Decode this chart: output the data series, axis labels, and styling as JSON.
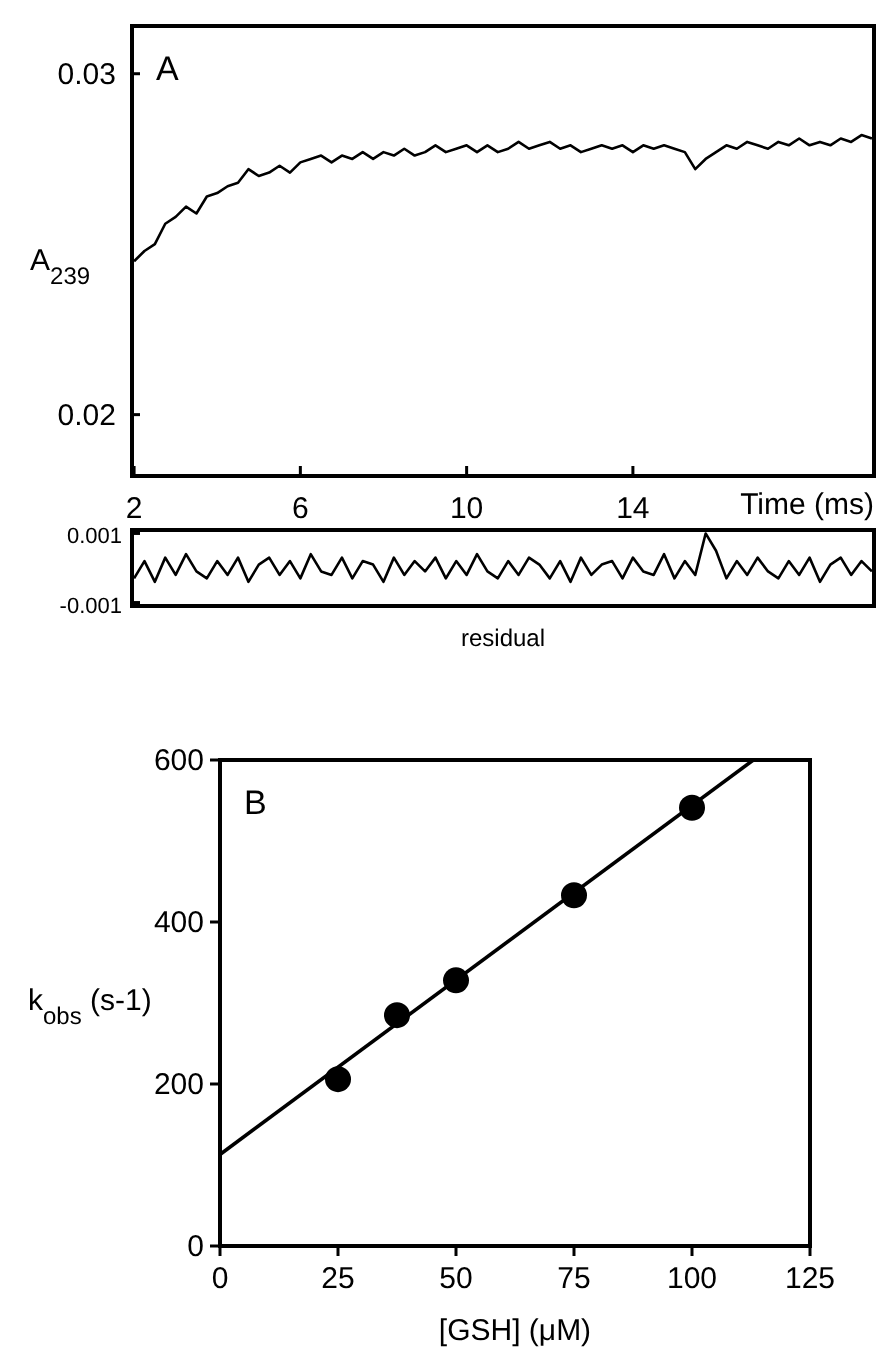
{
  "chart_data": [
    {
      "type": "line",
      "annotations": [
        "A"
      ],
      "ylabel": "A$_{239}$",
      "xlabel": "Time (ms)",
      "color": "#000000",
      "xlim": [
        1.95,
        19.8
      ],
      "ylim": [
        0.0182,
        0.0314
      ],
      "xticks": [
        2,
        6,
        10,
        14
      ],
      "yticks": [
        0.02,
        0.03
      ],
      "x": [
        2,
        2.25,
        2.5,
        2.75,
        3,
        3.25,
        3.5,
        3.75,
        4,
        4.25,
        4.5,
        4.75,
        5,
        5.25,
        5.5,
        5.75,
        6,
        6.25,
        6.5,
        6.75,
        7,
        7.25,
        7.5,
        7.75,
        8,
        8.25,
        8.5,
        8.75,
        9,
        9.25,
        9.5,
        9.75,
        10,
        10.25,
        10.5,
        10.75,
        11,
        11.25,
        11.5,
        11.75,
        12,
        12.25,
        12.5,
        12.75,
        13,
        13.25,
        13.5,
        13.75,
        14,
        14.25,
        14.5,
        14.75,
        15,
        15.25,
        15.5,
        15.75,
        16,
        16.25,
        16.5,
        16.75,
        17,
        17.25,
        17.5,
        17.75,
        18,
        18.25,
        18.5,
        18.75,
        19,
        19.25,
        19.5,
        19.75
      ],
      "values": [
        0.0245,
        0.0248,
        0.025,
        0.0256,
        0.0258,
        0.0261,
        0.0259,
        0.0264,
        0.0265,
        0.0267,
        0.0268,
        0.0272,
        0.027,
        0.0271,
        0.0273,
        0.0271,
        0.0274,
        0.0275,
        0.0276,
        0.0274,
        0.0276,
        0.0275,
        0.0277,
        0.0275,
        0.0277,
        0.0276,
        0.0278,
        0.0276,
        0.0277,
        0.0279,
        0.0277,
        0.0278,
        0.0279,
        0.0277,
        0.0279,
        0.0277,
        0.0278,
        0.028,
        0.0278,
        0.0279,
        0.028,
        0.0278,
        0.0279,
        0.0277,
        0.0278,
        0.0279,
        0.0278,
        0.0279,
        0.0277,
        0.0279,
        0.0278,
        0.0279,
        0.0278,
        0.0277,
        0.0272,
        0.0275,
        0.0277,
        0.0279,
        0.0278,
        0.028,
        0.0279,
        0.0278,
        0.028,
        0.0279,
        0.0281,
        0.0279,
        0.028,
        0.0279,
        0.0281,
        0.028,
        0.0282,
        0.0281
      ]
    },
    {
      "type": "line",
      "xlabel": "residual",
      "color": "#000000",
      "xlim": [
        1.95,
        19.8
      ],
      "ylim": [
        -0.0011,
        0.0011
      ],
      "yticks": [
        -0.001,
        0.001
      ],
      "tick_labels": "y",
      "x": [
        2,
        2.25,
        2.5,
        2.75,
        3,
        3.25,
        3.5,
        3.75,
        4,
        4.25,
        4.5,
        4.75,
        5,
        5.25,
        5.5,
        5.75,
        6,
        6.25,
        6.5,
        6.75,
        7,
        7.25,
        7.5,
        7.75,
        8,
        8.25,
        8.5,
        8.75,
        9,
        9.25,
        9.5,
        9.75,
        10,
        10.25,
        10.5,
        10.75,
        11,
        11.25,
        11.5,
        11.75,
        12,
        12.25,
        12.5,
        12.75,
        13,
        13.25,
        13.5,
        13.75,
        14,
        14.25,
        14.5,
        14.75,
        15,
        15.25,
        15.5,
        15.75,
        16,
        16.25,
        16.5,
        16.75,
        17,
        17.25,
        17.5,
        17.75,
        18,
        18.25,
        18.5,
        18.75,
        19,
        19.25,
        19.5,
        19.75
      ],
      "values": [
        -0.0003,
        0.0002,
        -0.0004,
        0.0003,
        -0.0002,
        0.0004,
        -0.0001,
        -0.0003,
        0.0002,
        -0.0002,
        0.0003,
        -0.0004,
        0.0001,
        0.0003,
        -0.0002,
        0.0002,
        -0.0003,
        0.0004,
        -0.0001,
        -0.0002,
        0.0003,
        -0.0003,
        0.0002,
        0.0001,
        -0.0004,
        0.0003,
        -0.0002,
        0.0002,
        -0.0001,
        0.0003,
        -0.0003,
        0.0002,
        -0.0002,
        0.0004,
        -0.0001,
        -0.0003,
        0.0002,
        -0.0002,
        0.0003,
        0.0001,
        -0.0003,
        0.0002,
        -0.0004,
        0.0003,
        -0.0002,
        0.0001,
        0.0002,
        -0.0003,
        0.0003,
        -0.0001,
        -0.0002,
        0.0004,
        -0.0003,
        0.0002,
        -0.0002,
        0.001,
        0.0005,
        -0.0003,
        0.0002,
        -0.0002,
        0.0003,
        -0.0001,
        -0.0003,
        0.0002,
        -0.0002,
        0.0003,
        -0.0004,
        0.0001,
        0.0003,
        -0.0002,
        0.0002,
        -0.0001
      ]
    },
    {
      "type": "scatter",
      "annotations": [
        "B"
      ],
      "xlabel": "[GSH] (μM)",
      "ylabel": "k$_{obs}$ (s-1)",
      "xlim": [
        0,
        125
      ],
      "ylim": [
        0,
        600
      ],
      "xticks": [
        0,
        25,
        50,
        75,
        100,
        125
      ],
      "yticks": [
        0,
        200,
        400,
        600
      ],
      "series": [
        {
          "marker": "circle",
          "color": "#000000",
          "x": [
            25,
            37.5,
            50,
            75,
            100
          ],
          "values": [
            206,
            285,
            328,
            433,
            541
          ]
        },
        {
          "type": "line",
          "color": "#000000",
          "x": [
            0,
            113
          ],
          "values": [
            113,
            600
          ]
        }
      ]
    }
  ]
}
